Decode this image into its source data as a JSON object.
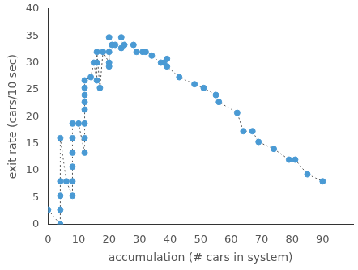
{
  "chart_data": {
    "type": "scatter",
    "x_label": "accumulation (# cars in system)",
    "y_label": "exit rate (cars/10 sec)",
    "series": [
      {
        "name": "exit rate",
        "color": "#4a9ad4",
        "marker": "circle",
        "line_style": "dotted",
        "x": [
          0,
          4,
          4,
          4,
          4,
          4,
          6,
          8,
          8,
          8,
          8,
          8,
          8,
          10,
          12,
          12,
          12,
          12,
          12,
          12,
          12,
          12,
          14,
          15,
          16,
          16,
          16,
          17,
          18,
          20,
          20,
          20,
          20,
          21,
          22,
          24,
          24,
          25,
          28,
          29,
          31,
          32,
          34,
          37,
          38,
          39,
          39,
          43,
          48,
          51,
          55,
          56,
          62,
          64,
          67,
          69,
          74,
          79,
          81,
          85,
          90
        ],
        "values": [
          2.7,
          0,
          2.7,
          5.3,
          8,
          16,
          8,
          5.3,
          8,
          10.7,
          13.3,
          16,
          18.7,
          18.7,
          13.3,
          16,
          18.7,
          21.3,
          22.7,
          24,
          25.3,
          26.7,
          27.3,
          30,
          26.7,
          30,
          32,
          25.3,
          32,
          30,
          32,
          29.3,
          34.7,
          33.3,
          33.3,
          34.7,
          32.7,
          33.3,
          33.3,
          32,
          32,
          32,
          31.3,
          30,
          30,
          30.7,
          29.3,
          27.3,
          26,
          25.3,
          24,
          22.7,
          20.7,
          17.3,
          17.3,
          15.3,
          14,
          12,
          12,
          9.3,
          8
        ]
      }
    ],
    "xlim": [
      0,
      100
    ],
    "xticks": [
      0,
      10,
      20,
      30,
      40,
      50,
      60,
      70,
      80,
      90
    ],
    "ylim": [
      0,
      40
    ],
    "yticks": [
      0,
      5,
      10,
      15,
      20,
      25,
      30,
      35,
      40
    ],
    "grid": false
  }
}
